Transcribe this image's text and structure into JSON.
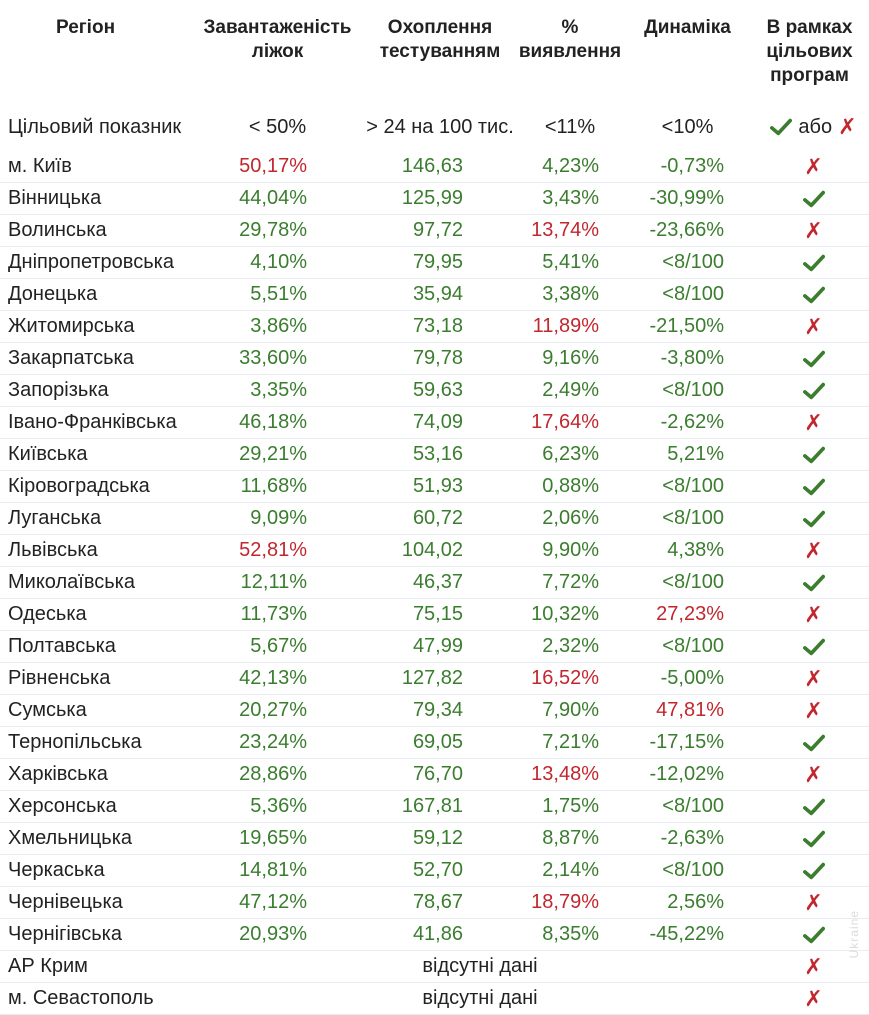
{
  "colors": {
    "ok": "#3a7d2e",
    "bad": "#c1272d",
    "text": "#222222"
  },
  "headers": [
    "Регіон",
    "Завантаженість\nліжок",
    "Охоплення\nтестуванням",
    "%\nвиявлення",
    "Динаміка",
    "В рамках\nцільових\nпрограм"
  ],
  "target": {
    "label": "Цільовий показник",
    "beds": "< 50%",
    "testing": "> 24 на 100 тис.",
    "detection": "<11%",
    "dynamics": "<10%",
    "legend_or": "або",
    "legend_check_icon": "check-icon",
    "legend_cross_icon": "cross-icon"
  },
  "missing_label": "відсутні дані",
  "rows": [
    {
      "region": "м. Київ",
      "beds": "50,17%",
      "beds_ok": false,
      "testing": "146,63",
      "testing_ok": true,
      "detection": "4,23%",
      "detection_ok": true,
      "dynamics": "-0,73%",
      "dynamics_ok": true,
      "target_met": false
    },
    {
      "region": "Вінницька",
      "beds": "44,04%",
      "beds_ok": true,
      "testing": "125,99",
      "testing_ok": true,
      "detection": "3,43%",
      "detection_ok": true,
      "dynamics": "-30,99%",
      "dynamics_ok": true,
      "target_met": true
    },
    {
      "region": "Волинська",
      "beds": "29,78%",
      "beds_ok": true,
      "testing": "97,72",
      "testing_ok": true,
      "detection": "13,74%",
      "detection_ok": false,
      "dynamics": "-23,66%",
      "dynamics_ok": true,
      "target_met": false
    },
    {
      "region": "Дніпропетровська",
      "beds": "4,10%",
      "beds_ok": true,
      "testing": "79,95",
      "testing_ok": true,
      "detection": "5,41%",
      "detection_ok": true,
      "dynamics": "<8/100",
      "dynamics_ok": true,
      "target_met": true
    },
    {
      "region": "Донецька",
      "beds": "5,51%",
      "beds_ok": true,
      "testing": "35,94",
      "testing_ok": true,
      "detection": "3,38%",
      "detection_ok": true,
      "dynamics": "<8/100",
      "dynamics_ok": true,
      "target_met": true
    },
    {
      "region": "Житомирська",
      "beds": "3,86%",
      "beds_ok": true,
      "testing": "73,18",
      "testing_ok": true,
      "detection": "11,89%",
      "detection_ok": false,
      "dynamics": "-21,50%",
      "dynamics_ok": true,
      "target_met": false
    },
    {
      "region": "Закарпатська",
      "beds": "33,60%",
      "beds_ok": true,
      "testing": "79,78",
      "testing_ok": true,
      "detection": "9,16%",
      "detection_ok": true,
      "dynamics": "-3,80%",
      "dynamics_ok": true,
      "target_met": true
    },
    {
      "region": "Запорізька",
      "beds": "3,35%",
      "beds_ok": true,
      "testing": "59,63",
      "testing_ok": true,
      "detection": "2,49%",
      "detection_ok": true,
      "dynamics": "<8/100",
      "dynamics_ok": true,
      "target_met": true
    },
    {
      "region": "Івано-Франківська",
      "beds": "46,18%",
      "beds_ok": true,
      "testing": "74,09",
      "testing_ok": true,
      "detection": "17,64%",
      "detection_ok": false,
      "dynamics": "-2,62%",
      "dynamics_ok": true,
      "target_met": false
    },
    {
      "region": "Київська",
      "beds": "29,21%",
      "beds_ok": true,
      "testing": "53,16",
      "testing_ok": true,
      "detection": "6,23%",
      "detection_ok": true,
      "dynamics": "5,21%",
      "dynamics_ok": true,
      "target_met": true
    },
    {
      "region": "Кіровоградська",
      "beds": "11,68%",
      "beds_ok": true,
      "testing": "51,93",
      "testing_ok": true,
      "detection": "0,88%",
      "detection_ok": true,
      "dynamics": "<8/100",
      "dynamics_ok": true,
      "target_met": true
    },
    {
      "region": "Луганська",
      "beds": "9,09%",
      "beds_ok": true,
      "testing": "60,72",
      "testing_ok": true,
      "detection": "2,06%",
      "detection_ok": true,
      "dynamics": "<8/100",
      "dynamics_ok": true,
      "target_met": true
    },
    {
      "region": "Львівська",
      "beds": "52,81%",
      "beds_ok": false,
      "testing": "104,02",
      "testing_ok": true,
      "detection": "9,90%",
      "detection_ok": true,
      "dynamics": "4,38%",
      "dynamics_ok": true,
      "target_met": false
    },
    {
      "region": "Миколаївська",
      "beds": "12,11%",
      "beds_ok": true,
      "testing": "46,37",
      "testing_ok": true,
      "detection": "7,72%",
      "detection_ok": true,
      "dynamics": "<8/100",
      "dynamics_ok": true,
      "target_met": true
    },
    {
      "region": "Одеська",
      "beds": "11,73%",
      "beds_ok": true,
      "testing": "75,15",
      "testing_ok": true,
      "detection": "10,32%",
      "detection_ok": true,
      "dynamics": "27,23%",
      "dynamics_ok": false,
      "target_met": false
    },
    {
      "region": "Полтавська",
      "beds": "5,67%",
      "beds_ok": true,
      "testing": "47,99",
      "testing_ok": true,
      "detection": "2,32%",
      "detection_ok": true,
      "dynamics": "<8/100",
      "dynamics_ok": true,
      "target_met": true
    },
    {
      "region": "Рівненська",
      "beds": "42,13%",
      "beds_ok": true,
      "testing": "127,82",
      "testing_ok": true,
      "detection": "16,52%",
      "detection_ok": false,
      "dynamics": "-5,00%",
      "dynamics_ok": true,
      "target_met": false
    },
    {
      "region": "Сумська",
      "beds": "20,27%",
      "beds_ok": true,
      "testing": "79,34",
      "testing_ok": true,
      "detection": "7,90%",
      "detection_ok": true,
      "dynamics": "47,81%",
      "dynamics_ok": false,
      "target_met": false
    },
    {
      "region": "Тернопільська",
      "beds": "23,24%",
      "beds_ok": true,
      "testing": "69,05",
      "testing_ok": true,
      "detection": "7,21%",
      "detection_ok": true,
      "dynamics": "-17,15%",
      "dynamics_ok": true,
      "target_met": true
    },
    {
      "region": "Харківська",
      "beds": "28,86%",
      "beds_ok": true,
      "testing": "76,70",
      "testing_ok": true,
      "detection": "13,48%",
      "detection_ok": false,
      "dynamics": "-12,02%",
      "dynamics_ok": true,
      "target_met": false
    },
    {
      "region": "Херсонська",
      "beds": "5,36%",
      "beds_ok": true,
      "testing": "167,81",
      "testing_ok": true,
      "detection": "1,75%",
      "detection_ok": true,
      "dynamics": "<8/100",
      "dynamics_ok": true,
      "target_met": true
    },
    {
      "region": "Хмельницька",
      "beds": "19,65%",
      "beds_ok": true,
      "testing": "59,12",
      "testing_ok": true,
      "detection": "8,87%",
      "detection_ok": true,
      "dynamics": "-2,63%",
      "dynamics_ok": true,
      "target_met": true
    },
    {
      "region": "Черкаська",
      "beds": "14,81%",
      "beds_ok": true,
      "testing": "52,70",
      "testing_ok": true,
      "detection": "2,14%",
      "detection_ok": true,
      "dynamics": "<8/100",
      "dynamics_ok": true,
      "target_met": true
    },
    {
      "region": "Чернівецька",
      "beds": "47,12%",
      "beds_ok": true,
      "testing": "78,67",
      "testing_ok": true,
      "detection": "18,79%",
      "detection_ok": false,
      "dynamics": "2,56%",
      "dynamics_ok": true,
      "target_met": false
    },
    {
      "region": "Чернігівська",
      "beds": "20,93%",
      "beds_ok": true,
      "testing": "41,86",
      "testing_ok": true,
      "detection": "8,35%",
      "detection_ok": true,
      "dynamics": "-45,22%",
      "dynamics_ok": true,
      "target_met": true
    },
    {
      "region": "АР Крим",
      "missing": true,
      "target_met": false
    },
    {
      "region": "м. Севастополь",
      "missing": true,
      "target_met": false
    }
  ]
}
